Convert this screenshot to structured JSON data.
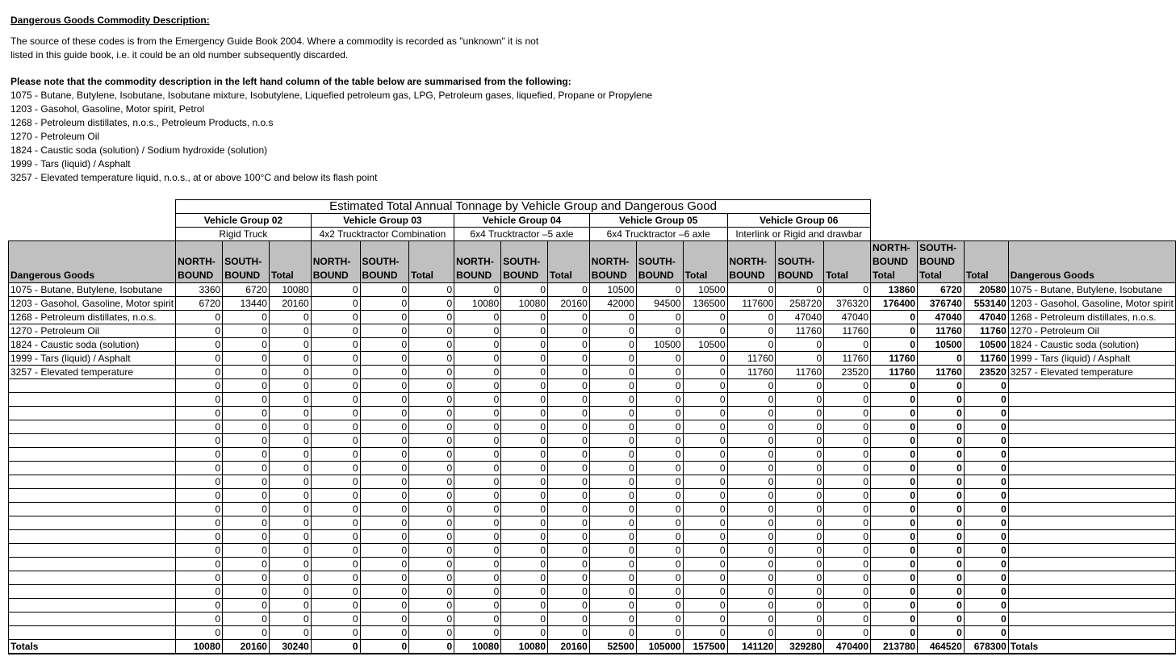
{
  "intro": {
    "title": "Dangerous Goods Commodity Description:",
    "para1": "The source of these codes is from the Emergency Guide Book 2004.  Where a commodity is recorded as \"unknown\" it is not",
    "para2": "listed in this guide book, i.e. it could be an old number subsequently discarded.",
    "note": "Please note that the commodity description in the left hand column of the table below are summarised from the following:",
    "codes": [
      "1075 - Butane, Butylene, Isobutane, Isobutane mixture, Isobutylene, Liquefied petroleum gas, LPG, Petroleum gases, liquefied, Propane or Propylene",
      "1203 - Gasohol, Gasoline, Motor spirit, Petrol",
      "1268 - Petroleum distillates, n.o.s., Petroleum Products, n.o.s",
      "1270 - Petroleum Oil",
      "1824 - Caustic soda (solution) / Sodium hydroxide (solution)",
      "1999 - Tars (liquid) / Asphalt",
      "3257 -  Elevated temperature liquid, n.o.s., at or above 100°C and below its flash point"
    ]
  },
  "table": {
    "title": "Estimated Total Annual Tonnage by Vehicle Group and Dangerous Good",
    "groups": [
      {
        "name": "Vehicle Group 02",
        "desc": "Rigid Truck"
      },
      {
        "name": "Vehicle Group 03",
        "desc": "4x2 Trucktractor Combination"
      },
      {
        "name": "Vehicle Group 04",
        "desc": "6x4 Trucktractor –5 axle"
      },
      {
        "name": "Vehicle Group 05",
        "desc": "6x4 Trucktractor –6 axle"
      },
      {
        "name": "Vehicle Group 06",
        "desc": "Interlink or Rigid and drawbar"
      }
    ],
    "col_dg": "Dangerous Goods",
    "col_nb": "NORTH-BOUND",
    "col_sb": "SOUTH-BOUND",
    "col_total": "Total",
    "col_nb_total": "NORTH-BOUND Total",
    "col_sb_total": "SOUTH-BOUND Total",
    "rows": [
      {
        "label": "1075 - Butane, Butylene, Isobutane",
        "values": [
          3360,
          6720,
          10080,
          0,
          0,
          0,
          0,
          0,
          0,
          10500,
          0,
          10500,
          0,
          0,
          0,
          13860,
          6720,
          20580
        ]
      },
      {
        "label": "1203 - Gasohol, Gasoline, Motor spirit",
        "values": [
          6720,
          13440,
          20160,
          0,
          0,
          0,
          10080,
          10080,
          20160,
          42000,
          94500,
          136500,
          117600,
          258720,
          376320,
          176400,
          376740,
          553140
        ]
      },
      {
        "label": "1268 - Petroleum distillates, n.o.s.",
        "values": [
          0,
          0,
          0,
          0,
          0,
          0,
          0,
          0,
          0,
          0,
          0,
          0,
          0,
          47040,
          47040,
          0,
          47040,
          47040
        ]
      },
      {
        "label": "1270 - Petroleum Oil",
        "values": [
          0,
          0,
          0,
          0,
          0,
          0,
          0,
          0,
          0,
          0,
          0,
          0,
          0,
          11760,
          11760,
          0,
          11760,
          11760
        ]
      },
      {
        "label": "1824 - Caustic soda (solution)",
        "values": [
          0,
          0,
          0,
          0,
          0,
          0,
          0,
          0,
          0,
          0,
          10500,
          10500,
          0,
          0,
          0,
          0,
          10500,
          10500
        ]
      },
      {
        "label": "1999 - Tars (liquid) / Asphalt",
        "values": [
          0,
          0,
          0,
          0,
          0,
          0,
          0,
          0,
          0,
          0,
          0,
          0,
          11760,
          0,
          11760,
          11760,
          0,
          11760
        ]
      },
      {
        "label": "3257 -  Elevated temperature",
        "values": [
          0,
          0,
          0,
          0,
          0,
          0,
          0,
          0,
          0,
          0,
          0,
          0,
          11760,
          11760,
          23520,
          11760,
          11760,
          23520
        ]
      }
    ],
    "empty_rows": [
      [
        0,
        0,
        0,
        0,
        0,
        0,
        0,
        0,
        0,
        0,
        0,
        0,
        0,
        0,
        0,
        0,
        0,
        0
      ],
      [
        0,
        0,
        0,
        0,
        0,
        0,
        0,
        0,
        0,
        0,
        0,
        0,
        0,
        0,
        0,
        0,
        0,
        0
      ],
      [
        0,
        0,
        0,
        0,
        0,
        0,
        0,
        0,
        0,
        0,
        0,
        0,
        0,
        0,
        0,
        0,
        0,
        0
      ],
      [
        0,
        0,
        0,
        0,
        0,
        0,
        0,
        0,
        0,
        0,
        0,
        0,
        0,
        0,
        0,
        0,
        0,
        0
      ],
      [
        0,
        0,
        0,
        0,
        0,
        0,
        0,
        0,
        0,
        0,
        0,
        0,
        0,
        0,
        0,
        0,
        0,
        0
      ],
      [
        0,
        0,
        0,
        0,
        0,
        0,
        0,
        0,
        0,
        0,
        0,
        0,
        0,
        0,
        0,
        0,
        0,
        0
      ],
      [
        0,
        0,
        0,
        0,
        0,
        0,
        0,
        0,
        0,
        0,
        0,
        0,
        0,
        0,
        0,
        0,
        0,
        0
      ],
      [
        0,
        0,
        0,
        0,
        0,
        0,
        0,
        0,
        0,
        0,
        0,
        0,
        0,
        0,
        0,
        0,
        0,
        0
      ],
      [
        0,
        0,
        0,
        0,
        0,
        0,
        0,
        0,
        0,
        0,
        0,
        0,
        0,
        0,
        0,
        0,
        0,
        0
      ],
      [
        0,
        0,
        0,
        0,
        0,
        0,
        0,
        0,
        0,
        0,
        0,
        0,
        0,
        0,
        0,
        0,
        0,
        0
      ],
      [
        0,
        0,
        0,
        0,
        0,
        0,
        0,
        0,
        0,
        0,
        0,
        0,
        0,
        0,
        0,
        0,
        0,
        0
      ],
      [
        0,
        0,
        0,
        0,
        0,
        0,
        0,
        0,
        0,
        0,
        0,
        0,
        0,
        0,
        0,
        0,
        0,
        0
      ],
      [
        0,
        0,
        0,
        0,
        0,
        0,
        0,
        0,
        0,
        0,
        0,
        0,
        0,
        0,
        0,
        0,
        0,
        0
      ],
      [
        0,
        0,
        0,
        0,
        0,
        0,
        0,
        0,
        0,
        0,
        0,
        0,
        0,
        0,
        0,
        0,
        0,
        0
      ],
      [
        0,
        0,
        0,
        0,
        0,
        0,
        0,
        0,
        0,
        0,
        0,
        0,
        0,
        0,
        0,
        0,
        0,
        0
      ],
      [
        0,
        0,
        0,
        0,
        0,
        0,
        0,
        0,
        0,
        0,
        0,
        0,
        0,
        0,
        0,
        0,
        0,
        0
      ],
      [
        0,
        0,
        0,
        0,
        0,
        0,
        0,
        0,
        0,
        0,
        0,
        0,
        0,
        0,
        0,
        0,
        0,
        0
      ],
      [
        0,
        0,
        0,
        0,
        0,
        0,
        0,
        0,
        0,
        0,
        0,
        0,
        0,
        0,
        0,
        0,
        0,
        0
      ],
      [
        0,
        0,
        0,
        0,
        0,
        0,
        0,
        0,
        0,
        0,
        0,
        0,
        0,
        0,
        0,
        0,
        0,
        0
      ]
    ],
    "totals": {
      "label": "Totals",
      "values": [
        10080,
        20160,
        30240,
        0,
        0,
        0,
        10080,
        10080,
        20160,
        52500,
        105000,
        157500,
        141120,
        329280,
        470400,
        213780,
        464520,
        678300
      ]
    }
  }
}
